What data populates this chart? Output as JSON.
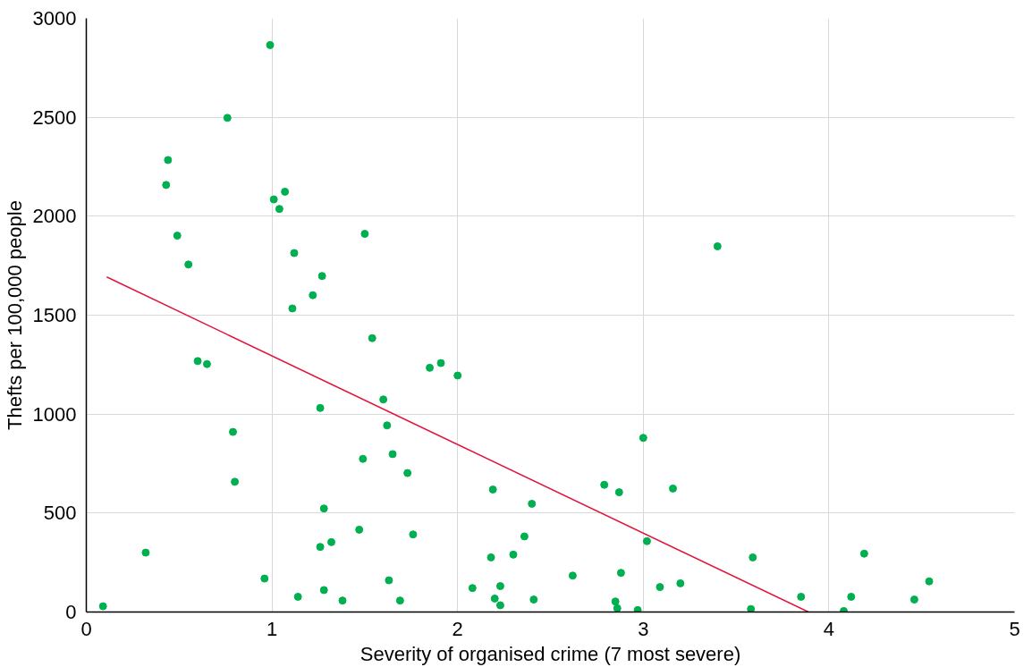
{
  "chart_data": {
    "type": "scatter",
    "xlabel": "Severity of organised crime (7 most severe)",
    "ylabel": "Thefts per 100,000 people",
    "xlim": [
      0,
      5
    ],
    "xticks": [
      0,
      1,
      2,
      3,
      4,
      5
    ],
    "ylim": [
      0,
      3000
    ],
    "yticks": [
      0,
      500,
      1000,
      1500,
      2000,
      2500,
      3000
    ],
    "grid": true,
    "marker": "circle",
    "series": [
      {
        "color": "#00b050",
        "x": [
          0.09,
          0.32,
          0.43,
          0.44,
          0.49,
          0.55,
          0.6,
          0.65,
          0.76,
          0.79,
          0.8,
          0.96,
          0.99,
          1.01,
          1.04,
          1.07,
          1.11,
          1.12,
          1.14,
          1.22,
          1.26,
          1.26,
          1.27,
          1.28,
          1.28,
          1.32,
          1.38,
          1.47,
          1.49,
          1.5,
          1.54,
          1.6,
          1.62,
          1.63,
          1.65,
          1.69,
          1.73,
          1.76,
          1.85,
          1.91,
          2.0,
          2.08,
          2.18,
          2.19,
          2.2,
          2.23,
          2.23,
          2.3,
          2.36,
          2.4,
          2.41,
          2.62,
          2.79,
          2.85,
          2.86,
          2.87,
          2.88,
          2.97,
          3.0,
          3.02,
          3.09,
          3.16,
          3.2,
          3.4,
          3.58,
          3.59,
          3.85,
          4.08,
          4.12,
          4.19,
          4.46,
          4.54
        ],
        "values": [
          29,
          300,
          2158,
          2284,
          1902,
          1756,
          1268,
          1253,
          2497,
          910,
          658,
          169,
          2865,
          2085,
          2037,
          2124,
          1534,
          1814,
          77,
          1601,
          1031,
          329,
          1698,
          523,
          111,
          353,
          58,
          416,
          774,
          1911,
          1384,
          1074,
          943,
          160,
          798,
          58,
          702,
          392,
          1234,
          1258,
          1195,
          121,
          276,
          619,
          68,
          131,
          34,
          290,
          382,
          547,
          63,
          184,
          643,
          53,
          19,
          605,
          198,
          10,
          880,
          358,
          126,
          624,
          145,
          1848,
          15,
          276,
          77,
          5,
          77,
          295,
          63,
          155
        ]
      },
      {
        "type": "line",
        "color": "#e0143c",
        "marker": "none",
        "x": [
          0.11,
          3.89
        ],
        "values": [
          1693,
          0
        ]
      }
    ]
  }
}
